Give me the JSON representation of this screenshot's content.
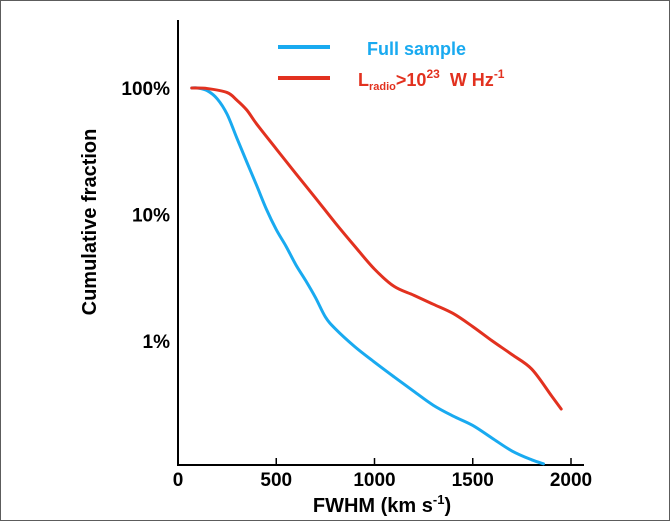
{
  "chart_data": {
    "type": "line",
    "title": "",
    "xlabel": "FWHM (km s",
    "xlabel_sup": "-1",
    "xlabel_end": ")",
    "ylabel": "Cumulative fraction",
    "xlim": [
      0,
      2000
    ],
    "x_ticks": [
      0,
      500,
      1000,
      1500,
      2000
    ],
    "x_tick_labels": [
      "0",
      "500",
      "1000",
      "1500",
      "2000"
    ],
    "y_scale": "log",
    "y_ticks": [
      100,
      10,
      1
    ],
    "y_tick_labels": [
      "100%",
      "10%",
      "1%"
    ],
    "grid": false,
    "legend_position": "top-right",
    "series": [
      {
        "name": "Full sample",
        "color": "#19aaf0",
        "x": [
          70,
          100,
          150,
          200,
          250,
          300,
          350,
          400,
          450,
          500,
          550,
          600,
          650,
          700,
          750,
          800,
          900,
          1000,
          1100,
          1200,
          1300,
          1400,
          1500,
          1600,
          1700,
          1800,
          1860
        ],
        "y": [
          100,
          100,
          95,
          82,
          62,
          40,
          26,
          17,
          11,
          7.6,
          5.6,
          4.0,
          3.0,
          2.2,
          1.55,
          1.25,
          0.9,
          0.68,
          0.52,
          0.4,
          0.31,
          0.255,
          0.215,
          0.17,
          0.135,
          0.115,
          0.107
        ]
      },
      {
        "name": "L",
        "name_sub": "radio",
        "name_mid": ">10",
        "name_sup": "23",
        "name_unit": "  W Hz",
        "name_unit_sup": "-1",
        "color": "#e2311f",
        "x": [
          70,
          150,
          250,
          300,
          350,
          400,
          500,
          600,
          700,
          800,
          900,
          1000,
          1100,
          1200,
          1300,
          1400,
          1500,
          1600,
          1700,
          1800,
          1900,
          1950
        ],
        "y": [
          100,
          99,
          92,
          80,
          67,
          52,
          33,
          21,
          13.5,
          8.6,
          5.6,
          3.7,
          2.7,
          2.3,
          1.95,
          1.65,
          1.3,
          1.0,
          0.78,
          0.6,
          0.37,
          0.29
        ]
      }
    ]
  }
}
